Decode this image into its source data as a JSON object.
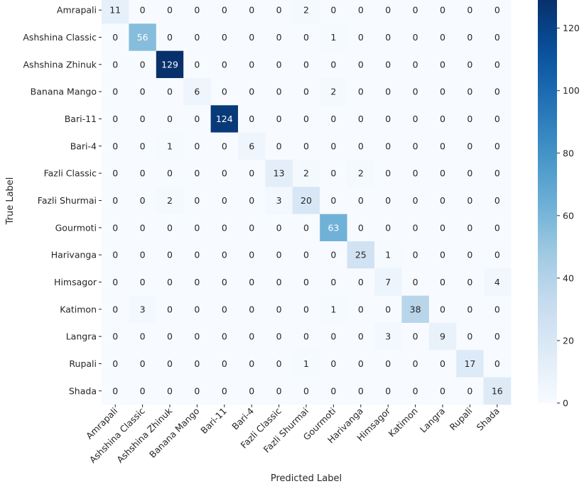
{
  "chart_data": {
    "type": "heatmap",
    "title": "",
    "xlabel": "Predicted Label",
    "ylabel": "True Label",
    "categories": [
      "Amrapali",
      "Ashshina Classic",
      "Ashshina Zhinuk",
      "Banana Mango",
      "Bari-11",
      "Bari-4",
      "Fazli Classic",
      "Fazli Shurmai",
      "Gourmoti",
      "Harivanga",
      "Himsagor",
      "Katimon",
      "Langra",
      "Rupali",
      "Shada"
    ],
    "matrix": [
      [
        11,
        0,
        0,
        0,
        0,
        0,
        0,
        2,
        0,
        0,
        0,
        0,
        0,
        0,
        0
      ],
      [
        0,
        56,
        0,
        0,
        0,
        0,
        0,
        0,
        1,
        0,
        0,
        0,
        0,
        0,
        0
      ],
      [
        0,
        0,
        129,
        0,
        0,
        0,
        0,
        0,
        0,
        0,
        0,
        0,
        0,
        0,
        0
      ],
      [
        0,
        0,
        0,
        6,
        0,
        0,
        0,
        0,
        2,
        0,
        0,
        0,
        0,
        0,
        0
      ],
      [
        0,
        0,
        0,
        0,
        124,
        0,
        0,
        0,
        0,
        0,
        0,
        0,
        0,
        0,
        0
      ],
      [
        0,
        0,
        1,
        0,
        0,
        6,
        0,
        0,
        0,
        0,
        0,
        0,
        0,
        0,
        0
      ],
      [
        0,
        0,
        0,
        0,
        0,
        0,
        13,
        2,
        0,
        2,
        0,
        0,
        0,
        0,
        0
      ],
      [
        0,
        0,
        2,
        0,
        0,
        0,
        3,
        20,
        0,
        0,
        0,
        0,
        0,
        0,
        0
      ],
      [
        0,
        0,
        0,
        0,
        0,
        0,
        0,
        0,
        63,
        0,
        0,
        0,
        0,
        0,
        0
      ],
      [
        0,
        0,
        0,
        0,
        0,
        0,
        0,
        0,
        0,
        25,
        1,
        0,
        0,
        0,
        0
      ],
      [
        0,
        0,
        0,
        0,
        0,
        0,
        0,
        0,
        0,
        0,
        7,
        0,
        0,
        0,
        4
      ],
      [
        0,
        3,
        0,
        0,
        0,
        0,
        0,
        0,
        1,
        0,
        0,
        38,
        0,
        0,
        0
      ],
      [
        0,
        0,
        0,
        0,
        0,
        0,
        0,
        0,
        0,
        0,
        3,
        0,
        9,
        0,
        0
      ],
      [
        0,
        0,
        0,
        0,
        0,
        0,
        0,
        1,
        0,
        0,
        0,
        0,
        0,
        17,
        0
      ],
      [
        0,
        0,
        0,
        0,
        0,
        0,
        0,
        0,
        0,
        0,
        0,
        0,
        0,
        0,
        16
      ]
    ],
    "colorbar": {
      "colormap": "Blues",
      "range": [
        0,
        129
      ],
      "ticks": [
        0,
        20,
        40,
        60,
        80,
        100,
        120
      ]
    },
    "colors": {
      "low": "#f7fbff",
      "high": "#08306b",
      "text_dark": "#262626",
      "text_light": "#ffffff"
    }
  }
}
